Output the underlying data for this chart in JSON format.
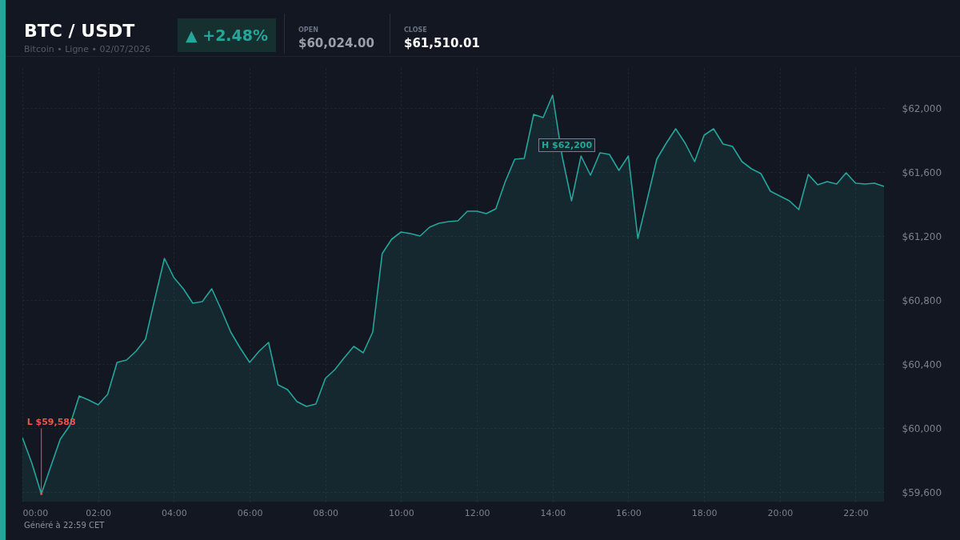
{
  "chart_data": {
    "type": "area",
    "title": "BTC / USDT",
    "subtitle": "Bitcoin • Ligne • 02/07/2026",
    "annotations": [
      "▲ +2.48%",
      "OPEN",
      "$60,024.00",
      "CLOSE",
      "$61,510.01",
      "Généré à 22:59 CET",
      {
        "text": "L $59,588",
        "x": 0.5,
        "y": 59588
      },
      "H $62,200"
    ],
    "x": [
      0,
      0.25,
      0.5,
      0.75,
      1,
      1.25,
      1.5,
      1.75,
      2,
      2.25,
      2.5,
      2.75,
      3,
      3.25,
      3.5,
      3.75,
      4,
      4.25,
      4.5,
      4.75,
      5,
      5.25,
      5.5,
      5.75,
      6,
      6.25,
      6.5,
      6.75,
      7,
      7.25,
      7.5,
      7.75,
      8,
      8.25,
      8.5,
      8.75,
      9,
      9.25,
      9.5,
      9.75,
      10,
      10.25,
      10.5,
      10.75,
      11,
      11.25,
      11.5,
      11.75,
      12,
      12.25,
      12.5,
      12.75,
      13,
      13.25,
      13.5,
      13.75,
      14,
      14.25,
      14.5,
      14.75,
      15,
      15.25,
      15.5,
      15.75,
      16,
      16.25,
      16.5,
      16.75,
      17,
      17.25,
      17.5,
      17.75,
      18,
      18.25,
      18.5,
      18.75,
      19,
      19.25,
      19.5,
      19.75,
      20,
      20.25,
      20.5,
      20.75,
      21,
      21.25,
      21.5,
      21.75,
      22,
      22.25,
      22.5,
      22.75
    ],
    "series": [
      {
        "color": "#26a69a",
        "values": [
          59940,
          59780,
          59588,
          59760,
          59930,
          60015,
          60200,
          60175,
          60145,
          60210,
          60410,
          60425,
          60480,
          60555,
          60810,
          61060,
          60940,
          60870,
          60780,
          60790,
          60870,
          60740,
          60600,
          60500,
          60410,
          60480,
          60535,
          60270,
          60240,
          60165,
          60135,
          60150,
          60310,
          60365,
          60440,
          60510,
          60470,
          60600,
          61090,
          61180,
          61225,
          61215,
          61200,
          61255,
          61280,
          61290,
          61295,
          61355,
          61355,
          61340,
          61370,
          61540,
          61680,
          61685,
          61960,
          61940,
          62080,
          61700,
          61420,
          61700,
          61580,
          61720,
          61710,
          61610,
          61700,
          61185,
          61430,
          61680,
          61780,
          61870,
          61780,
          61665,
          61830,
          61870,
          61775,
          61760,
          61665,
          61620,
          61590,
          61480,
          61450,
          61420,
          61365,
          61585,
          61520,
          61540,
          61525,
          61595,
          61530,
          61525,
          61530,
          61510
        ]
      }
    ],
    "xlim": [
      0,
      22.75
    ],
    "xticks": [
      {
        "value": 0,
        "label": "00:00"
      },
      {
        "value": 2,
        "label": "02:00"
      },
      {
        "value": 4,
        "label": "04:00"
      },
      {
        "value": 6,
        "label": "06:00"
      },
      {
        "value": 8,
        "label": "08:00"
      },
      {
        "value": 10,
        "label": "10:00"
      },
      {
        "value": 12,
        "label": "12:00"
      },
      {
        "value": 14,
        "label": "14:00"
      },
      {
        "value": 16,
        "label": "16:00"
      },
      {
        "value": 18,
        "label": "18:00"
      },
      {
        "value": 20,
        "label": "20:00"
      },
      {
        "value": 22,
        "label": "22:00"
      }
    ],
    "ylim": [
      59540,
      62250
    ],
    "yticks": [
      {
        "value": 59600,
        "label": "$59,600"
      },
      {
        "value": 60000,
        "label": "$60,000"
      },
      {
        "value": 60400,
        "label": "$60,400"
      },
      {
        "value": 60800,
        "label": "$60,800"
      },
      {
        "value": 61200,
        "label": "$61,200"
      },
      {
        "value": 61600,
        "label": "$61,600"
      },
      {
        "value": 62000,
        "label": "$62,000"
      }
    ],
    "grid": true
  }
}
